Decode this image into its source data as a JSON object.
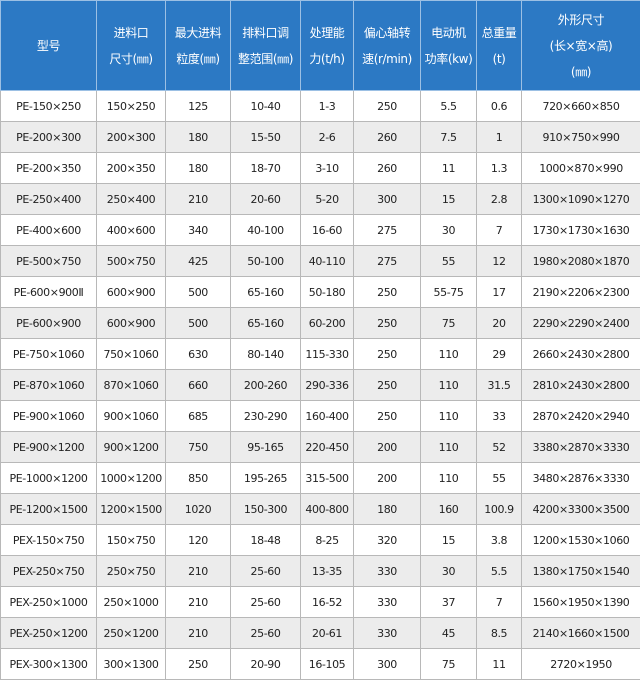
{
  "table": {
    "header": [
      [
        "型号"
      ],
      [
        "进料口",
        "尺寸(㎜)"
      ],
      [
        "最大进料",
        "粒度(㎜)"
      ],
      [
        "排料口调",
        "整范围(㎜)"
      ],
      [
        "处理能",
        "力(t/h)"
      ],
      [
        "偏心轴转",
        "速(r/min)"
      ],
      [
        "电动机",
        "功率(kw)"
      ],
      [
        "总重量",
        "(t)"
      ],
      [
        "外形尺寸",
        "(长×宽×高)",
        "(㎜)"
      ]
    ],
    "rows": [
      [
        "PE-150×250",
        "150×250",
        "125",
        "10-40",
        "1-3",
        "250",
        "5.5",
        "0.6",
        "720×660×850"
      ],
      [
        "PE-200×300",
        "200×300",
        "180",
        "15-50",
        "2-6",
        "260",
        "7.5",
        "1",
        "910×750×990"
      ],
      [
        "PE-200×350",
        "200×350",
        "180",
        "18-70",
        "3-10",
        "260",
        "11",
        "1.3",
        "1000×870×990"
      ],
      [
        "PE-250×400",
        "250×400",
        "210",
        "20-60",
        "5-20",
        "300",
        "15",
        "2.8",
        "1300×1090×1270"
      ],
      [
        "PE-400×600",
        "400×600",
        "340",
        "40-100",
        "16-60",
        "275",
        "30",
        "7",
        "1730×1730×1630"
      ],
      [
        "PE-500×750",
        "500×750",
        "425",
        "50-100",
        "40-110",
        "275",
        "55",
        "12",
        "1980×2080×1870"
      ],
      [
        "PE-600×900Ⅱ",
        "600×900",
        "500",
        "65-160",
        "50-180",
        "250",
        "55-75",
        "17",
        "2190×2206×2300"
      ],
      [
        "PE-600×900",
        "600×900",
        "500",
        "65-160",
        "60-200",
        "250",
        "75",
        "20",
        "2290×2290×2400"
      ],
      [
        "PE-750×1060",
        "750×1060",
        "630",
        "80-140",
        "115-330",
        "250",
        "110",
        "29",
        "2660×2430×2800"
      ],
      [
        "PE-870×1060",
        "870×1060",
        "660",
        "200-260",
        "290-336",
        "250",
        "110",
        "31.5",
        "2810×2430×2800"
      ],
      [
        "PE-900×1060",
        "900×1060",
        "685",
        "230-290",
        "160-400",
        "250",
        "110",
        "33",
        "2870×2420×2940"
      ],
      [
        "PE-900×1200",
        "900×1200",
        "750",
        "95-165",
        "220-450",
        "200",
        "110",
        "52",
        "3380×2870×3330"
      ],
      [
        "PE-1000×1200",
        "1000×1200",
        "850",
        "195-265",
        "315-500",
        "200",
        "110",
        "55",
        "3480×2876×3330"
      ],
      [
        "PE-1200×1500",
        "1200×1500",
        "1020",
        "150-300",
        "400-800",
        "180",
        "160",
        "100.9",
        "4200×3300×3500"
      ],
      [
        "PEX-150×750",
        "150×750",
        "120",
        "18-48",
        "8-25",
        "320",
        "15",
        "3.8",
        "1200×1530×1060"
      ],
      [
        "PEX-250×750",
        "250×750",
        "210",
        "25-60",
        "13-35",
        "330",
        "30",
        "5.5",
        "1380×1750×1540"
      ],
      [
        "PEX-250×1000",
        "250×1000",
        "210",
        "25-60",
        "16-52",
        "330",
        "37",
        "7",
        "1560×1950×1390"
      ],
      [
        "PEX-250×1200",
        "250×1200",
        "210",
        "25-60",
        "20-61",
        "330",
        "45",
        "8.5",
        "2140×1660×1500"
      ],
      [
        "PEX-300×1300",
        "300×1300",
        "250",
        "20-90",
        "16-105",
        "300",
        "75",
        "11",
        "2720×1950"
      ]
    ]
  }
}
